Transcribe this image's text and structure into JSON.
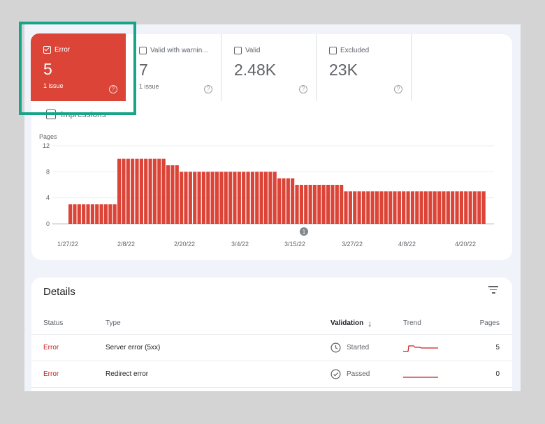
{
  "tiles": {
    "error": {
      "label": "Error",
      "value": "5",
      "sub": "1 issue",
      "help": "?"
    },
    "warning": {
      "label": "Valid with warnin...",
      "value": "7",
      "sub": "1 issue",
      "help": "?"
    },
    "valid": {
      "label": "Valid",
      "value": "2.48K",
      "help": "?"
    },
    "excluded": {
      "label": "Excluded",
      "value": "23K",
      "help": "?"
    }
  },
  "impressions_label": "Impressions",
  "chart_data": {
    "type": "bar",
    "ylabel": "Pages",
    "yticks": [
      0,
      4,
      8,
      12
    ],
    "ylim": [
      0,
      12
    ],
    "xticks": [
      "1/27/22",
      "2/8/22",
      "2/20/22",
      "3/4/22",
      "3/15/22",
      "3/27/22",
      "4/8/22",
      "4/20/22"
    ],
    "annotation": "1",
    "color": "#db4437",
    "values": [
      3,
      3,
      3,
      3,
      3,
      3,
      3,
      3,
      3,
      3,
      3,
      10,
      10,
      10,
      10,
      10,
      10,
      10,
      10,
      10,
      10,
      10,
      9,
      9,
      9,
      8,
      8,
      8,
      8,
      8,
      8,
      8,
      8,
      8,
      8,
      8,
      8,
      8,
      8,
      8,
      8,
      8,
      8,
      8,
      8,
      8,
      8,
      7,
      7,
      7,
      7,
      6,
      6,
      6,
      6,
      6,
      6,
      6,
      6,
      6,
      6,
      6,
      5,
      5,
      5,
      5,
      5,
      5,
      5,
      5,
      5,
      5,
      5,
      5,
      5,
      5,
      5,
      5,
      5,
      5,
      5,
      5,
      5,
      5,
      5,
      5,
      5,
      5,
      5,
      5,
      5,
      5,
      5,
      5
    ]
  },
  "details": {
    "title": "Details",
    "columns": {
      "status": "Status",
      "type": "Type",
      "validation": "Validation",
      "sort_arrow": "↓",
      "trend": "Trend",
      "pages": "Pages"
    },
    "rows": [
      {
        "status": "Error",
        "type": "Server error (5xx)",
        "validation": "Started",
        "validation_icon": "clock-icon",
        "pages": "5"
      },
      {
        "status": "Error",
        "type": "Redirect error",
        "validation": "Passed",
        "validation_icon": "check-circle-icon",
        "pages": "0"
      }
    ]
  }
}
